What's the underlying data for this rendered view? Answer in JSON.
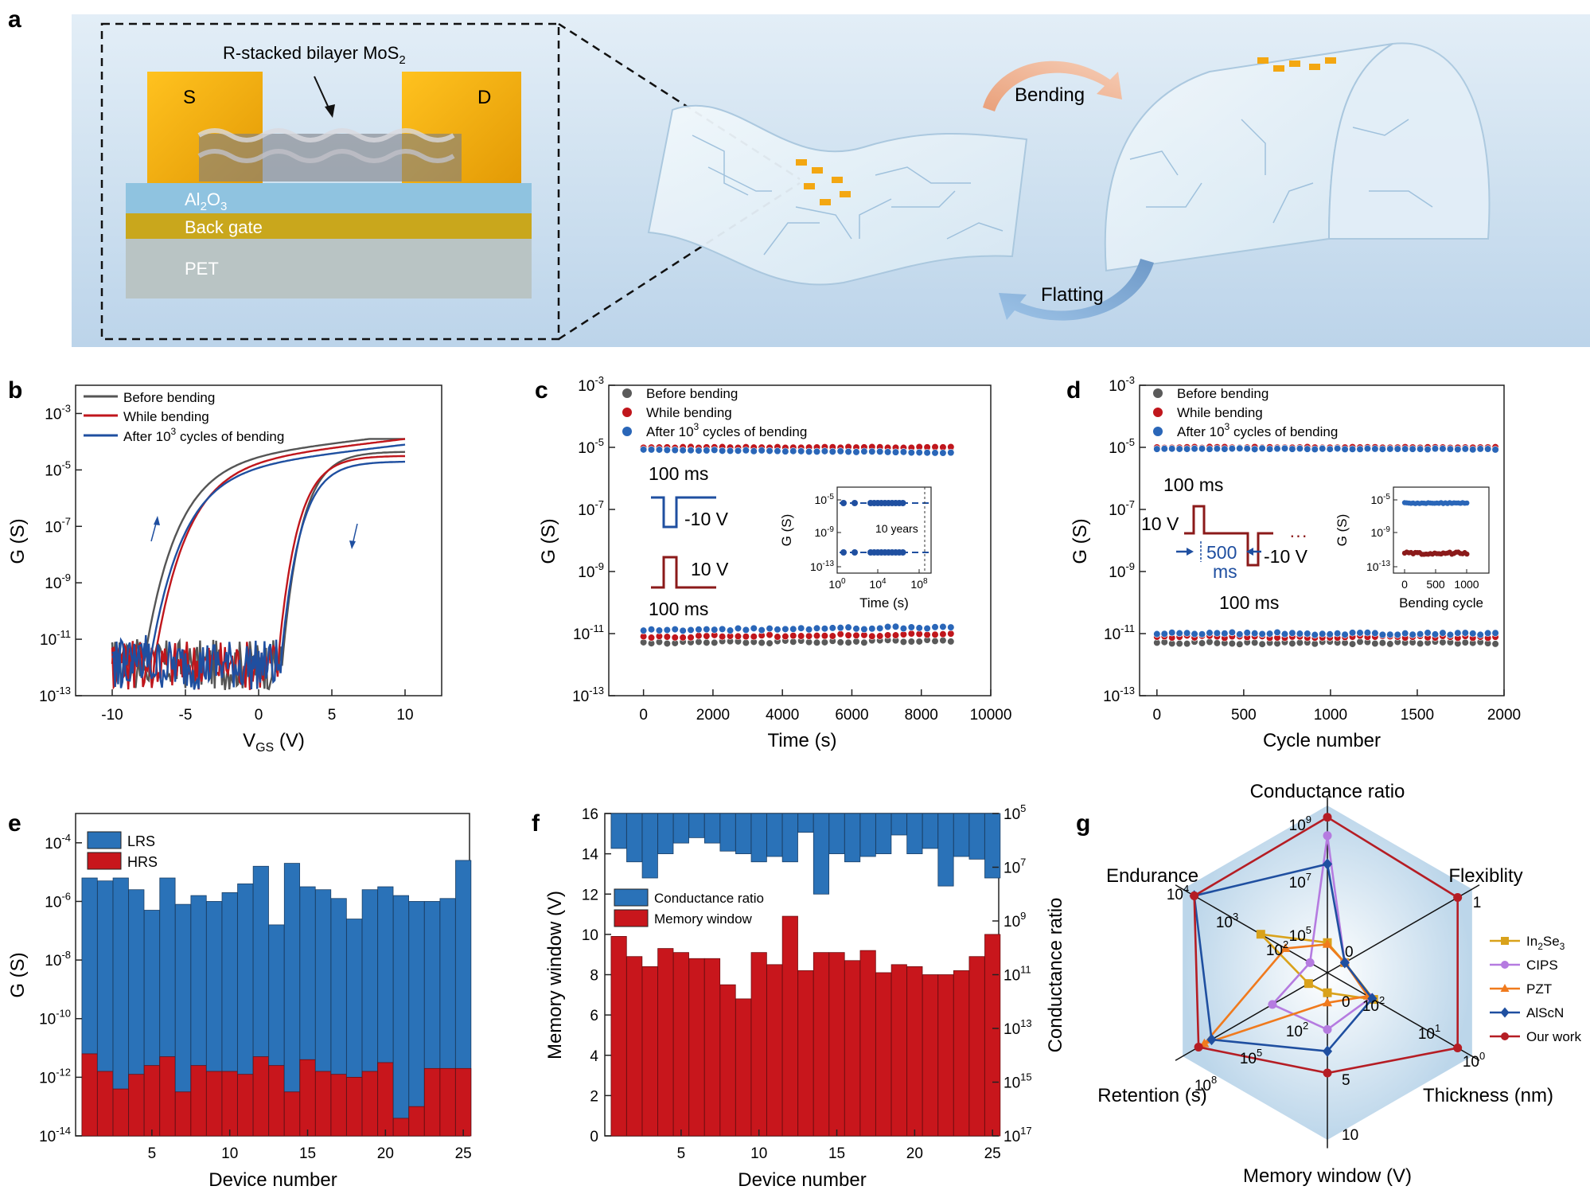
{
  "panel_a": {
    "letter": "a",
    "source_label": "S",
    "drain_label": "D",
    "channel_label": "R-stacked bilayer MoS",
    "channel_sub": "2",
    "dielectric_label": "Al",
    "dielectric_sub1": "2",
    "dielectric_o": "O",
    "dielectric_sub2": "3",
    "gate_label": "Back gate",
    "substrate_label": "PET",
    "bending_label": "Bending",
    "flatting_label": "Flatting",
    "colors": {
      "electrode": "#f3a712",
      "dielectric": "#8fc3e0",
      "gate": "#c9a71c",
      "substrate": "#b9c4c4",
      "background": "#cfe3f2"
    }
  },
  "panel_b": {
    "letter": "b",
    "ylabel": "G (S)",
    "xlabel_main": "V",
    "xlabel_sub": "GS",
    "xlabel_unit": " (V)",
    "xticks": [
      "-10",
      "-5",
      "0",
      "5",
      "10"
    ],
    "yticks": [
      {
        "base": "10",
        "exp": "-3"
      },
      {
        "base": "10",
        "exp": "-5"
      },
      {
        "base": "10",
        "exp": "-7"
      },
      {
        "base": "10",
        "exp": "-9"
      },
      {
        "base": "10",
        "exp": "-11"
      },
      {
        "base": "10",
        "exp": "-13"
      }
    ],
    "legend": [
      {
        "text": "Before bending",
        "color": "#555555"
      },
      {
        "text": "While bending",
        "color": "#c0161c"
      },
      {
        "text": "After 10",
        "sup": "3",
        "tail": " cycles of bending",
        "color": "#1f4fa0"
      }
    ]
  },
  "panel_c": {
    "letter": "c",
    "ylabel": "G (S)",
    "xlabel": "Time (s)",
    "xticks": [
      "0",
      "2000",
      "4000",
      "6000",
      "8000",
      "10000"
    ],
    "yticks": [
      {
        "base": "10",
        "exp": "-3"
      },
      {
        "base": "10",
        "exp": "-5"
      },
      {
        "base": "10",
        "exp": "-7"
      },
      {
        "base": "10",
        "exp": "-9"
      },
      {
        "base": "10",
        "exp": "-11"
      },
      {
        "base": "10",
        "exp": "-13"
      }
    ],
    "legend": [
      {
        "text": "Before bending",
        "color": "#5a5a5a"
      },
      {
        "text": "While bending",
        "color": "#c0161c"
      },
      {
        "text": "After 10",
        "sup": "3",
        "tail": " cycles of bending",
        "color": "#2a66b8"
      }
    ],
    "pulse_top_ms": "100 ms",
    "pulse_neg_v": "-10 V",
    "pulse_pos_v": "10 V",
    "pulse_bottom_ms": "100 ms",
    "inset_ylabel": "G (S)",
    "inset_xlabel": "Time (s)",
    "inset_note": "10 years",
    "inset_yticks": [
      {
        "base": "10",
        "exp": "-5"
      },
      {
        "base": "10",
        "exp": "-9"
      },
      {
        "base": "10",
        "exp": "-13"
      }
    ],
    "inset_xticks": [
      {
        "base": "10",
        "exp": "0"
      },
      {
        "base": "10",
        "exp": "4"
      },
      {
        "base": "10",
        "exp": "8"
      }
    ]
  },
  "panel_d": {
    "letter": "d",
    "ylabel": "G (S)",
    "xlabel": "Cycle number",
    "xticks": [
      "0",
      "500",
      "1000",
      "1500",
      "2000"
    ],
    "yticks": [
      {
        "base": "10",
        "exp": "-3"
      },
      {
        "base": "10",
        "exp": "-5"
      },
      {
        "base": "10",
        "exp": "-7"
      },
      {
        "base": "10",
        "exp": "-9"
      },
      {
        "base": "10",
        "exp": "-11"
      },
      {
        "base": "10",
        "exp": "-13"
      }
    ],
    "legend": [
      {
        "text": "Before bending",
        "color": "#5a5a5a"
      },
      {
        "text": "While bending",
        "color": "#c0161c"
      },
      {
        "text": "After 10",
        "sup": "3",
        "tail": " cycles of bending",
        "color": "#2a66b8"
      }
    ],
    "pulse_top_ms": "100 ms",
    "pulse_pos_v": "10 V",
    "pulse_gap": "500",
    "pulse_gap_unit": "ms",
    "pulse_neg_v": "-10 V",
    "pulse_dots": "···",
    "pulse_bottom_ms": "100 ms",
    "inset_ylabel": "G (S)",
    "inset_xlabel": "Bending cycle",
    "inset_yticks": [
      {
        "base": "10",
        "exp": "-5"
      },
      {
        "base": "10",
        "exp": "-9"
      },
      {
        "base": "10",
        "exp": "-13"
      }
    ],
    "inset_xticks": [
      "0",
      "500",
      "1000"
    ]
  },
  "panel_e": {
    "letter": "e",
    "ylabel": "G (S)",
    "xlabel": "Device number",
    "xticks": [
      "5",
      "10",
      "15",
      "20",
      "25"
    ],
    "yticks": [
      {
        "base": "10",
        "exp": "-4"
      },
      {
        "base": "10",
        "exp": "-6"
      },
      {
        "base": "10",
        "exp": "-8"
      },
      {
        "base": "10",
        "exp": "-10"
      },
      {
        "base": "10",
        "exp": "-12"
      },
      {
        "base": "10",
        "exp": "-14"
      }
    ],
    "legend": [
      {
        "text": "LRS",
        "color": "#2a72b8"
      },
      {
        "text": "HRS",
        "color": "#c8161c"
      }
    ]
  },
  "panel_f": {
    "letter": "f",
    "ylabel_left": "Memory window (V)",
    "ylabel_right": "Conductance ratio",
    "xlabel": "Device number",
    "xticks": [
      "5",
      "10",
      "15",
      "20",
      "25"
    ],
    "yticks_left": [
      "0",
      "2",
      "4",
      "6",
      "8",
      "10",
      "12",
      "14",
      "16"
    ],
    "yticks_right": [
      {
        "base": "10",
        "exp": "5"
      },
      {
        "base": "10",
        "exp": "7"
      },
      {
        "base": "10",
        "exp": "9"
      },
      {
        "base": "10",
        "exp": "11"
      },
      {
        "base": "10",
        "exp": "13"
      },
      {
        "base": "10",
        "exp": "15"
      },
      {
        "base": "10",
        "exp": "17"
      }
    ],
    "legend": [
      {
        "text": "Conductance ratio",
        "color": "#2a72b8"
      },
      {
        "text": "Memory window",
        "color": "#c8161c"
      }
    ]
  },
  "panel_g": {
    "letter": "g",
    "axis_labels": [
      "Conductance ratio",
      "Flexiblity",
      "Thickness (nm)",
      "Memory window (V)",
      "Retention (s)",
      "Endurance"
    ],
    "cr_ticks": [
      {
        "base": "10",
        "exp": "9"
      },
      {
        "base": "10",
        "exp": "7"
      },
      {
        "base": "10",
        "exp": "5"
      }
    ],
    "flex_ticks": [
      "0",
      "1"
    ],
    "thick_ticks": [
      {
        "base": "10",
        "exp": "2"
      },
      {
        "base": "10",
        "exp": "1"
      },
      {
        "base": "10",
        "exp": "0"
      }
    ],
    "mw_ticks": [
      "0",
      "5",
      "10"
    ],
    "ret_ticks": [
      {
        "base": "10",
        "exp": "2"
      },
      {
        "base": "10",
        "exp": "5"
      },
      {
        "base": "10",
        "exp": "8"
      }
    ],
    "end_ticks": [
      {
        "base": "10",
        "exp": "2"
      },
      {
        "base": "10",
        "exp": "3"
      },
      {
        "base": "10",
        "exp": "4"
      }
    ],
    "legend": [
      {
        "text": "In",
        "sub": "2",
        "mid": "Se",
        "sub2": "3",
        "color": "#d9a21b",
        "marker": "square"
      },
      {
        "text": "CIPS",
        "color": "#b57be0",
        "marker": "circle"
      },
      {
        "text": "PZT",
        "color": "#f07a1d",
        "marker": "triangle"
      },
      {
        "text": "AlScN",
        "color": "#1f4fa0",
        "marker": "diamond"
      },
      {
        "text": "Our work",
        "color": "#b51d24",
        "marker": "circle"
      }
    ]
  },
  "chart_data": [
    {
      "panel": "b",
      "type": "line",
      "x_range": [
        -12.5,
        12.5
      ],
      "y_log_range": [
        -13,
        -2
      ],
      "series": [
        {
          "name": "Before bending",
          "forward_threshold": -7.9,
          "reverse_threshold": 1.6,
          "on": -4.05
        },
        {
          "name": "While bending",
          "forward_threshold": -7.2,
          "reverse_threshold": 1.3,
          "on": -4.2
        },
        {
          "name": "After 10^3 cycles of bending",
          "forward_threshold": -7.5,
          "reverse_threshold": 1.5,
          "on": -4.4
        }
      ]
    },
    {
      "panel": "c",
      "type": "scatter",
      "x_range": [
        -1000,
        10000
      ],
      "y_log_range": [
        -13,
        -3
      ],
      "series": [
        {
          "name": "Before bending",
          "lrs": -5.02,
          "hrs": -11.3
        },
        {
          "name": "While bending",
          "lrs": -5.0,
          "hrs": -11.1
        },
        {
          "name": "After 10^3 cycles of bending",
          "lrs": -5.08,
          "hrs": -10.9
        }
      ]
    },
    {
      "panel": "d",
      "type": "scatter",
      "x_range": [
        -100,
        2000
      ],
      "y_log_range": [
        -13,
        -3
      ],
      "series": [
        {
          "name": "Before bending",
          "lrs": -5.02,
          "hrs": -11.3
        },
        {
          "name": "While bending",
          "lrs": -5.0,
          "hrs": -11.1
        },
        {
          "name": "After 10^3 cycles of bending",
          "lrs": -5.04,
          "hrs": -11.0
        }
      ]
    },
    {
      "panel": "e",
      "type": "bar",
      "categories": [
        1,
        2,
        3,
        4,
        5,
        6,
        7,
        8,
        9,
        10,
        11,
        12,
        13,
        14,
        15,
        16,
        17,
        18,
        19,
        20,
        21,
        22,
        23,
        24,
        25
      ],
      "y_log_range": [
        -14,
        -3
      ],
      "series": [
        {
          "name": "LRS",
          "log_values": [
            -5.2,
            -5.3,
            -5.2,
            -5.6,
            -6.3,
            -5.2,
            -6.1,
            -5.8,
            -6.0,
            -5.7,
            -5.4,
            -4.8,
            -6.8,
            -4.7,
            -5.5,
            -5.6,
            -5.9,
            -6.6,
            -5.6,
            -5.5,
            -5.8,
            -6.0,
            -6.0,
            -5.9,
            -4.6
          ]
        },
        {
          "name": "HRS",
          "log_values": [
            -11.2,
            -11.8,
            -12.4,
            -11.9,
            -11.6,
            -11.3,
            -12.5,
            -11.6,
            -11.8,
            -11.8,
            -11.9,
            -11.3,
            -11.6,
            -12.5,
            -11.4,
            -11.8,
            -11.9,
            -12.0,
            -11.8,
            -11.5,
            -13.4,
            -13.0,
            -11.7,
            -11.7,
            -11.7
          ]
        }
      ]
    },
    {
      "panel": "f",
      "type": "bar",
      "categories": [
        1,
        2,
        3,
        4,
        5,
        6,
        7,
        8,
        9,
        10,
        11,
        12,
        13,
        14,
        15,
        16,
        17,
        18,
        19,
        20,
        21,
        22,
        23,
        24,
        25
      ],
      "series": [
        {
          "name": "Memory window",
          "values": [
            9.9,
            8.9,
            8.4,
            9.3,
            9.1,
            8.8,
            8.8,
            7.5,
            6.8,
            9.1,
            8.5,
            10.9,
            8.2,
            9.1,
            9.1,
            8.7,
            9.2,
            8.1,
            8.5,
            8.4,
            8.0,
            8.0,
            8.2,
            8.9,
            10.0
          ]
        },
        {
          "name": "Conductance ratio",
          "log_values": [
            6.3,
            6.8,
            7.4,
            6.5,
            6.1,
            5.9,
            6.1,
            6.4,
            6.5,
            6.8,
            6.6,
            6.8,
            5.7,
            8.0,
            6.5,
            6.8,
            6.6,
            6.5,
            5.8,
            6.5,
            6.3,
            7.7,
            6.6,
            6.7,
            7.4
          ]
        }
      ]
    },
    {
      "panel": "g",
      "type": "radar",
      "axes": [
        "Conductance ratio",
        "Flexiblity",
        "Thickness (nm)",
        "Memory window (V)",
        "Retention (s)",
        "Endurance"
      ],
      "series": [
        {
          "name": "In2Se3",
          "normalized": [
            0.18,
            0.12,
            0.32,
            0.12,
            0.13,
            0.46
          ]
        },
        {
          "name": "CIPS",
          "normalized": [
            0.82,
            0.12,
            0.3,
            0.34,
            0.38,
            0.12
          ]
        },
        {
          "name": "PZT",
          "normalized": [
            0.17,
            0.12,
            0.28,
            0.18,
            0.85,
            0.29
          ]
        },
        {
          "name": "AlScN",
          "normalized": [
            0.65,
            0.12,
            0.31,
            0.47,
            0.8,
            0.92
          ]
        },
        {
          "name": "Our work",
          "normalized": [
            0.93,
            0.9,
            0.9,
            0.6,
            0.89,
            0.92
          ]
        }
      ]
    }
  ]
}
